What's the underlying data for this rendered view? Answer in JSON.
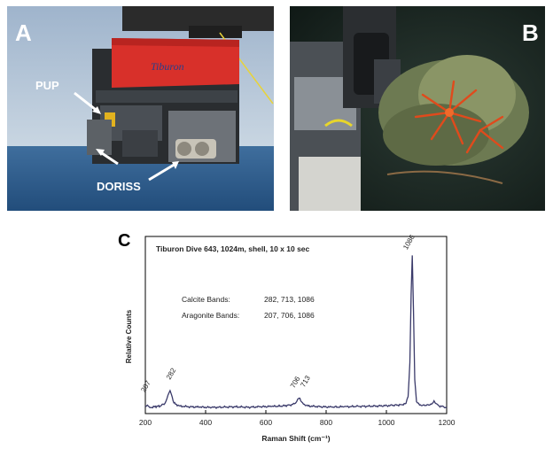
{
  "panel_a": {
    "letter": "A",
    "labels": {
      "pup": "PUP",
      "doriss": "DORISS"
    },
    "vehicle_text": "Tiburon"
  },
  "panel_b": {
    "letter": "B"
  },
  "panel_c": {
    "letter": "C"
  },
  "chart_data": {
    "type": "line",
    "title": "Tiburon Dive 643, 1024m, shell, 10 x 10 sec",
    "xlabel": "Raman Shift (cm⁻¹)",
    "ylabel": "Relative Counts",
    "xlim": [
      200,
      1200
    ],
    "xticks": [
      200,
      400,
      600,
      800,
      1000,
      1200
    ],
    "grid": false,
    "annotations": [
      {
        "text": "Calcite Bands:",
        "values": "282, 713, 1086"
      },
      {
        "text": "Aragonite Bands:",
        "values": "207, 706, 1086"
      }
    ],
    "peak_labels": [
      {
        "x": 207,
        "text": "207"
      },
      {
        "x": 282,
        "text": "282"
      },
      {
        "x": 706,
        "text": "706"
      },
      {
        "x": 713,
        "text": "713"
      },
      {
        "x": 1086,
        "text": "1086"
      }
    ],
    "series": [
      {
        "color": "#3a3a6a",
        "points": [
          [
            200,
            0.04
          ],
          [
            207,
            0.05
          ],
          [
            215,
            0.035
          ],
          [
            230,
            0.04
          ],
          [
            250,
            0.045
          ],
          [
            265,
            0.06
          ],
          [
            272,
            0.09
          ],
          [
            278,
            0.12
          ],
          [
            282,
            0.135
          ],
          [
            287,
            0.11
          ],
          [
            292,
            0.075
          ],
          [
            300,
            0.055
          ],
          [
            315,
            0.045
          ],
          [
            340,
            0.04
          ],
          [
            380,
            0.038
          ],
          [
            420,
            0.036
          ],
          [
            460,
            0.038
          ],
          [
            500,
            0.04
          ],
          [
            540,
            0.037
          ],
          [
            580,
            0.04
          ],
          [
            620,
            0.042
          ],
          [
            650,
            0.044
          ],
          [
            680,
            0.05
          ],
          [
            695,
            0.058
          ],
          [
            702,
            0.07
          ],
          [
            706,
            0.085
          ],
          [
            710,
            0.09
          ],
          [
            713,
            0.09
          ],
          [
            718,
            0.07
          ],
          [
            725,
            0.055
          ],
          [
            740,
            0.045
          ],
          [
            780,
            0.04
          ],
          [
            820,
            0.038
          ],
          [
            860,
            0.04
          ],
          [
            900,
            0.042
          ],
          [
            940,
            0.043
          ],
          [
            980,
            0.045
          ],
          [
            1020,
            0.048
          ],
          [
            1050,
            0.052
          ],
          [
            1065,
            0.06
          ],
          [
            1072,
            0.1
          ],
          [
            1078,
            0.3
          ],
          [
            1082,
            0.7
          ],
          [
            1086,
            0.93
          ],
          [
            1090,
            0.6
          ],
          [
            1094,
            0.2
          ],
          [
            1100,
            0.07
          ],
          [
            1110,
            0.05
          ],
          [
            1130,
            0.048
          ],
          [
            1150,
            0.055
          ],
          [
            1158,
            0.075
          ],
          [
            1163,
            0.06
          ],
          [
            1175,
            0.045
          ],
          [
            1190,
            0.04
          ],
          [
            1200,
            0.038
          ]
        ]
      }
    ]
  }
}
